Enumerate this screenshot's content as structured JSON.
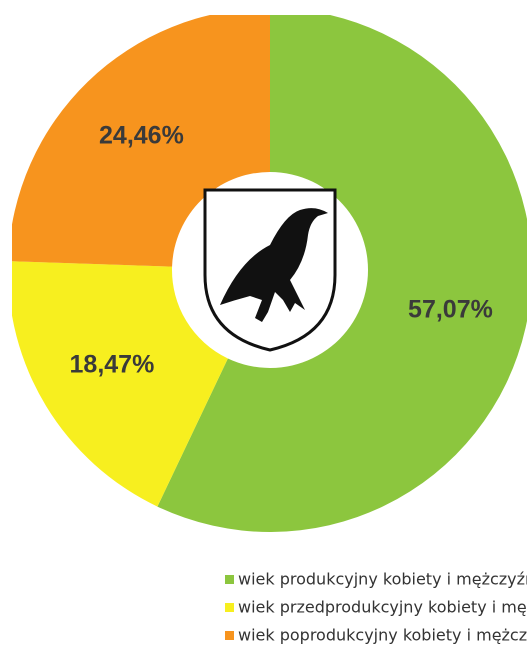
{
  "chart_data": {
    "type": "donut",
    "categories": [
      "wiek produkcyjny kobiety i mężczyźni",
      "wiek przedprodukcyjny kobiety i mężczyźni",
      "wiek poprodukcyjny kobiety i mężczyźni"
    ],
    "values": [
      57.07,
      18.47,
      24.46
    ],
    "value_labels": [
      "57,07%",
      "18,47%",
      "24,46%"
    ],
    "colors": [
      "#8cc63e",
      "#f7ef1f",
      "#f7941e"
    ]
  }
}
